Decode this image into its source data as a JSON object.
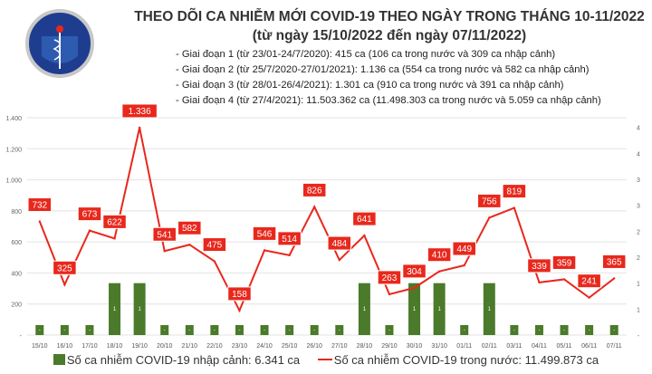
{
  "header": {
    "title": "THEO DÕI CA NHIỄM MỚI COVID-19 THEO NGÀY TRONG THÁNG 10-11/2022",
    "subtitle": "(từ ngày 15/10/2022 đến ngày 07/11/2022)",
    "stages": [
      "- Giai đoạn 1 (từ 23/01-24/7/2020): 415 ca (106 ca trong nước và 309 ca nhập cảnh)",
      "- Giai đoạn 2 (từ 25/7/2020-27/01/2021): 1.136 ca (554 ca trong nước và 582 ca nhập cảnh)",
      "- Giai đoạn 3 (từ 28/01-26/4/2021): 1.301 ca (910 ca trong nước và 391 ca nhập cảnh)",
      "- Giai đoạn 4 (từ 27/4/2021): 11.503.362 ca (11.498.303 ca trong nước và 5.059 ca nhập cảnh)"
    ],
    "logo_text": "BỘ Y TẾ · MINISTRY OF HEALTH"
  },
  "chart_data": {
    "type": "bar+line",
    "categories": [
      "15/10",
      "16/10",
      "17/10",
      "18/10",
      "19/10",
      "20/10",
      "21/10",
      "22/10",
      "23/10",
      "24/10",
      "25/10",
      "26/10",
      "27/10",
      "28/10",
      "29/10",
      "30/10",
      "31/10",
      "01/11",
      "02/11",
      "03/11",
      "04/11",
      "05/11",
      "06/11",
      "07/11"
    ],
    "series": [
      {
        "name": "Số ca nhiễm COVID-19 nhập cảnh: 6.341 ca",
        "type": "bar",
        "axis": "right",
        "color": "#4a7a2a",
        "values": [
          0,
          0,
          0,
          1,
          1,
          0,
          0,
          0,
          0,
          0,
          0,
          0,
          0,
          1,
          0,
          1,
          1,
          0,
          1,
          0,
          0,
          0,
          0,
          0
        ]
      },
      {
        "name": "Số ca nhiễm COVID-19 trong nước: 11.499.873 ca",
        "type": "line",
        "axis": "left",
        "color": "#e8281c",
        "values": [
          732,
          325,
          673,
          622,
          1336,
          541,
          582,
          475,
          158,
          546,
          514,
          826,
          484,
          641,
          263,
          304,
          410,
          449,
          756,
          819,
          339,
          359,
          241,
          365
        ]
      }
    ],
    "left_axis": {
      "ylim": [
        0,
        1400
      ],
      "ticks": [
        "-",
        "200",
        "400",
        "600",
        "800",
        "1.000",
        "1.200",
        "1.400"
      ]
    },
    "right_axis": {
      "ylim": [
        0,
        4.5
      ],
      "ticks": [
        "-",
        "1",
        "1",
        "2",
        "2",
        "3",
        "3",
        "4",
        "4"
      ]
    },
    "grid": true,
    "legend": "bottom",
    "bar_zero_label": "-"
  }
}
